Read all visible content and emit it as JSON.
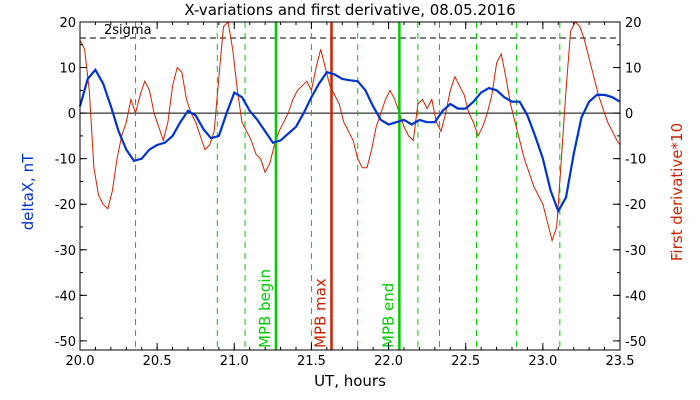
{
  "chart_data": {
    "type": "line",
    "title": "X-variations and first derivative, 08.05.2016",
    "xlabel": "UT, hours",
    "ylabel_left": "deltaX, nT",
    "ylabel_right": "First derivative*10",
    "xlim": [
      20.0,
      23.5
    ],
    "ylim_left": [
      -52,
      20
    ],
    "ylim_right": [
      -52,
      20
    ],
    "x_ticks": [
      "20.0",
      "20.5",
      "21.0",
      "21.5",
      "22.0",
      "22.5",
      "23.0",
      "23.5"
    ],
    "y_ticks_left": [
      "20",
      "10",
      "0",
      "-10",
      "-20",
      "-30",
      "-40",
      "-50"
    ],
    "y_ticks_right": [
      "20",
      "10",
      "0",
      "-10",
      "-20",
      "-30",
      "-40",
      "-50"
    ],
    "threshold": {
      "label": "2sigma",
      "value": 16.5
    },
    "colors": {
      "deltaX": "#0033cc",
      "derivative": "#cc2200",
      "mpb_edges": "#00cc00",
      "mpb_max": "#cc2200",
      "extrema": "#00cc00"
    },
    "vertical_markers": [
      {
        "label": "MPB begin",
        "x": 21.27
      },
      {
        "label": "MPB max",
        "x": 21.63
      },
      {
        "label": "MPB end",
        "x": 22.07
      }
    ],
    "extrema_dashed_lines": [
      20.36,
      20.89,
      21.07,
      21.5,
      21.8,
      22.19,
      22.33,
      22.57,
      22.83,
      23.11
    ],
    "series": [
      {
        "name": "deltaX, nT",
        "axis": "left",
        "x": [
          20.0,
          20.05,
          20.1,
          20.15,
          20.2,
          20.25,
          20.3,
          20.35,
          20.4,
          20.45,
          20.5,
          20.55,
          20.6,
          20.65,
          20.7,
          20.75,
          20.8,
          20.85,
          20.9,
          20.95,
          21.0,
          21.05,
          21.1,
          21.15,
          21.2,
          21.25,
          21.3,
          21.35,
          21.4,
          21.45,
          21.5,
          21.55,
          21.6,
          21.65,
          21.7,
          21.75,
          21.8,
          21.85,
          21.9,
          21.95,
          22.0,
          22.05,
          22.1,
          22.15,
          22.2,
          22.25,
          22.3,
          22.35,
          22.4,
          22.45,
          22.5,
          22.55,
          22.6,
          22.65,
          22.7,
          22.75,
          22.8,
          22.85,
          22.9,
          22.95,
          23.0,
          23.05,
          23.1,
          23.15,
          23.2,
          23.25,
          23.3,
          23.35,
          23.4,
          23.45,
          23.5
        ],
        "values": [
          1.5,
          7.5,
          9.5,
          6.5,
          1.5,
          -4,
          -8,
          -10.5,
          -10,
          -8,
          -7,
          -6.5,
          -5,
          -2,
          0.5,
          -0.5,
          -3.5,
          -5.5,
          -5,
          0,
          4.5,
          3.5,
          0.5,
          -1.5,
          -4,
          -6.5,
          -6,
          -4.5,
          -3,
          0,
          3.5,
          6.5,
          9,
          8.5,
          7.5,
          7.2,
          7,
          5,
          1.5,
          -1.5,
          -2.5,
          -2,
          -1.5,
          -2.5,
          -1.5,
          -2,
          -2,
          0.5,
          2,
          1,
          1,
          2.5,
          4.5,
          5.5,
          5,
          3.5,
          2.5,
          2.5,
          -0.5,
          -5,
          -10,
          -17,
          -21.5,
          -18.5,
          -9,
          -1,
          2.5,
          4,
          4,
          3.5,
          2.5
        ]
      },
      {
        "name": "First derivative*10",
        "axis": "right",
        "x": [
          20.0,
          20.03,
          20.06,
          20.09,
          20.12,
          20.15,
          20.18,
          20.21,
          20.24,
          20.27,
          20.3,
          20.33,
          20.36,
          20.39,
          20.42,
          20.45,
          20.48,
          20.51,
          20.54,
          20.57,
          20.6,
          20.63,
          20.66,
          20.69,
          20.72,
          20.75,
          20.78,
          20.81,
          20.84,
          20.87,
          20.9,
          20.93,
          20.96,
          20.99,
          21.02,
          21.05,
          21.08,
          21.11,
          21.14,
          21.17,
          21.2,
          21.23,
          21.26,
          21.29,
          21.32,
          21.35,
          21.38,
          21.41,
          21.44,
          21.47,
          21.5,
          21.53,
          21.56,
          21.59,
          21.62,
          21.65,
          21.68,
          21.71,
          21.74,
          21.77,
          21.8,
          21.83,
          21.86,
          21.89,
          21.92,
          21.95,
          21.98,
          22.01,
          22.04,
          22.07,
          22.1,
          22.13,
          22.16,
          22.19,
          22.22,
          22.25,
          22.28,
          22.31,
          22.34,
          22.37,
          22.4,
          22.43,
          22.46,
          22.49,
          22.52,
          22.55,
          22.58,
          22.61,
          22.64,
          22.67,
          22.7,
          22.73,
          22.76,
          22.79,
          22.82,
          22.85,
          22.88,
          22.91,
          22.94,
          22.97,
          23.0,
          23.03,
          23.06,
          23.09,
          23.12,
          23.15,
          23.18,
          23.21,
          23.24,
          23.27,
          23.3,
          23.33,
          23.36,
          23.39,
          23.42,
          23.45,
          23.48,
          23.5
        ],
        "values": [
          16,
          14,
          5,
          -12,
          -18,
          -20,
          -21,
          -17,
          -10,
          -5,
          -2,
          3,
          0,
          4,
          7,
          5,
          0,
          -3,
          -6,
          -2,
          6,
          10,
          9,
          3,
          0,
          -2,
          -5,
          -8,
          -7,
          -4,
          8,
          19,
          20,
          14,
          5,
          -2,
          -4,
          -6,
          -9,
          -10,
          -13,
          -11,
          -7,
          -4,
          -2,
          0,
          3,
          5,
          6,
          7,
          5,
          10,
          14,
          10,
          6,
          4,
          2,
          -2,
          -4,
          -6,
          -10,
          -12,
          -12,
          -8,
          -3,
          0,
          3,
          5,
          3,
          0,
          -3,
          -5,
          -6,
          2,
          3,
          1,
          3,
          -2,
          -4,
          0,
          5,
          8,
          6,
          4,
          0,
          -2,
          -5,
          -3,
          0,
          4,
          11,
          13,
          8,
          2,
          -2,
          -6,
          -10,
          -13,
          -16,
          -18,
          -20,
          -24,
          -28,
          -25,
          -10,
          5,
          18,
          20,
          19,
          16,
          12,
          8,
          4,
          1,
          -2,
          -4,
          -6,
          -7
        ]
      }
    ]
  }
}
